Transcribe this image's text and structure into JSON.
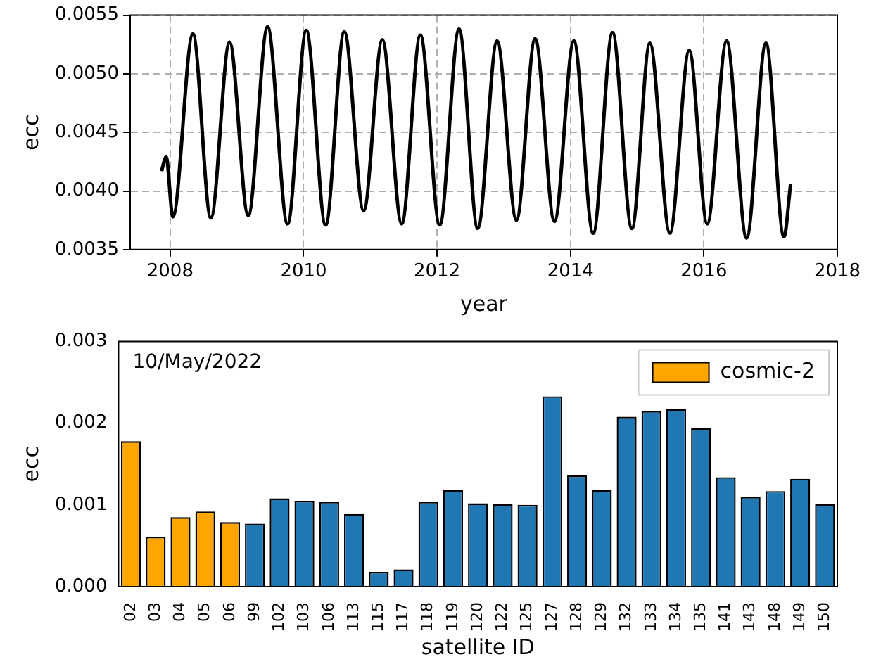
{
  "chart_data": [
    {
      "type": "line",
      "xlabel": "year",
      "ylabel": "ecc",
      "grid": true,
      "xlim": [
        2007.4,
        2018
      ],
      "xticks": [
        2008,
        2010,
        2012,
        2014,
        2016,
        2018
      ],
      "ylim": [
        0.0035,
        0.0055
      ],
      "yticks": [
        {
          "value": 0.0035,
          "label": "0.0035"
        },
        {
          "value": 0.004,
          "label": "0.0040"
        },
        {
          "value": 0.0045,
          "label": "0.0045"
        },
        {
          "value": 0.005,
          "label": "0.0050"
        },
        {
          "value": 0.0055,
          "label": "0.0055"
        }
      ],
      "series": [
        {
          "color": "#000000",
          "x": [
            2007.87,
            2007.94,
            2008.04,
            2008.34,
            2008.61,
            2008.89,
            2009.17,
            2009.46,
            2009.76,
            2010.04,
            2010.33,
            2010.61,
            2010.9,
            2011.18,
            2011.47,
            2011.75,
            2012.04,
            2012.33,
            2012.61,
            2012.9,
            2013.19,
            2013.47,
            2013.76,
            2014.05,
            2014.34,
            2014.63,
            2014.92,
            2015.19,
            2015.49,
            2015.78,
            2016.05,
            2016.34,
            2016.64,
            2016.93,
            2017.2,
            2017.3
          ],
          "values": [
            0.00417,
            0.00429,
            0.00378,
            0.00534,
            0.00377,
            0.00527,
            0.00379,
            0.0054,
            0.00372,
            0.00537,
            0.00371,
            0.00536,
            0.00383,
            0.00529,
            0.00372,
            0.00533,
            0.00371,
            0.00538,
            0.00368,
            0.00528,
            0.00375,
            0.0053,
            0.00374,
            0.00528,
            0.00364,
            0.00535,
            0.00368,
            0.00526,
            0.00364,
            0.0052,
            0.00372,
            0.00528,
            0.0036,
            0.00526,
            0.00361,
            0.00406
          ]
        }
      ]
    },
    {
      "type": "bar",
      "xlabel": "satellite ID",
      "ylabel": "ecc",
      "legend": "top right",
      "annotations": [
        "10/May/2022"
      ],
      "categories": [
        "02",
        "03",
        "04",
        "05",
        "06",
        "99",
        "102",
        "103",
        "106",
        "113",
        "115",
        "117",
        "118",
        "119",
        "120",
        "122",
        "125",
        "127",
        "128",
        "129",
        "132",
        "133",
        "134",
        "135",
        "141",
        "143",
        "148",
        "149",
        "150"
      ],
      "ylim": [
        0,
        0.003
      ],
      "yticks": [
        {
          "value": 0,
          "label": "0.000"
        },
        {
          "value": 0.001,
          "label": "0.001"
        },
        {
          "value": 0.002,
          "label": "0.002"
        },
        {
          "value": 0.003,
          "label": "0.003"
        }
      ],
      "series": [
        {
          "name": "cosmic-2",
          "color": "#ffa500",
          "values": [
            0.00178,
            0.00061,
            0.00085,
            0.00092,
            0.00079,
            null,
            null,
            null,
            null,
            null,
            null,
            null,
            null,
            null,
            null,
            null,
            null,
            null,
            null,
            null,
            null,
            null,
            null,
            null,
            null,
            null,
            null,
            null,
            null
          ]
        },
        {
          "color": "#1f77b4",
          "values": [
            null,
            null,
            null,
            null,
            null,
            0.00077,
            0.00108,
            0.00105,
            0.00104,
            0.00089,
            0.00018,
            0.00021,
            0.00104,
            0.00118,
            0.00102,
            0.00101,
            0.001,
            0.00233,
            0.00136,
            0.00118,
            0.00208,
            0.00215,
            0.00217,
            0.00194,
            0.00134,
            0.0011,
            0.00117,
            0.00132,
            0.00101
          ]
        }
      ]
    }
  ]
}
